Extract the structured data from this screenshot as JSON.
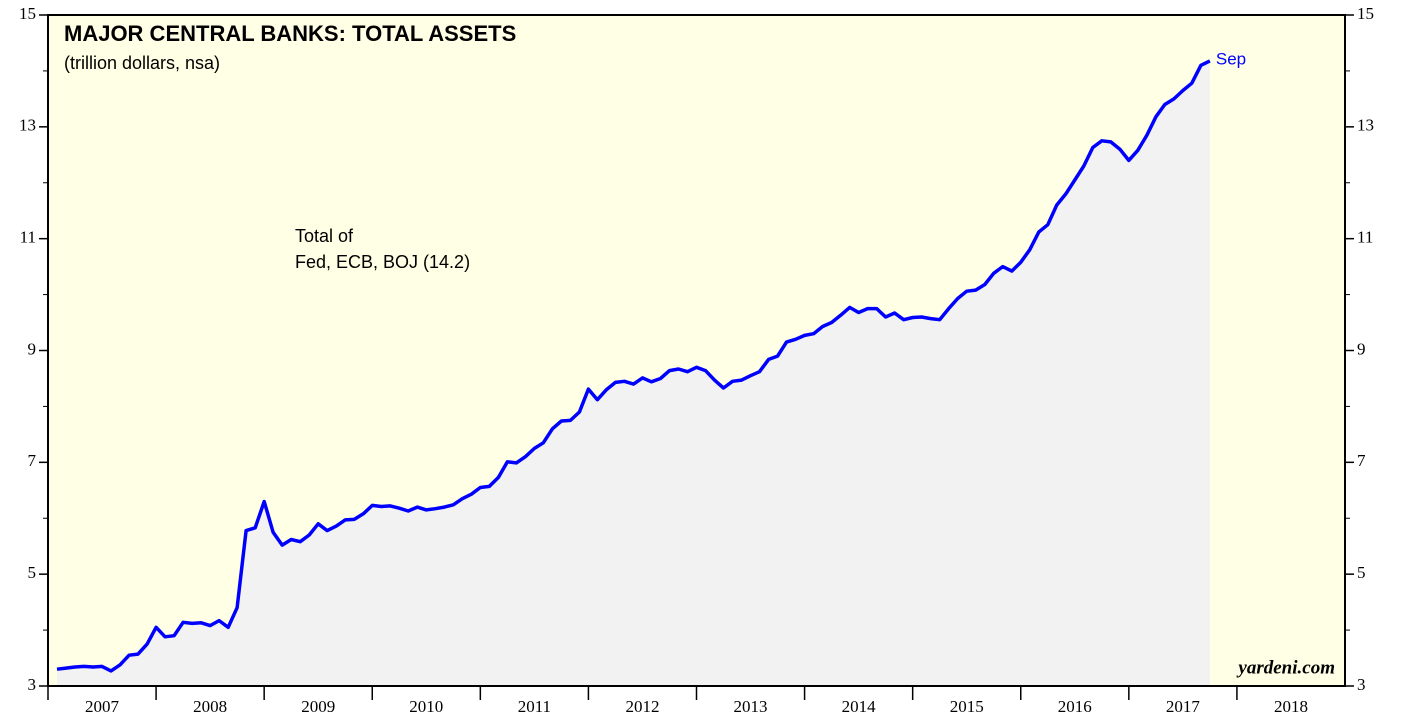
{
  "chart_data": {
    "type": "area-line",
    "title": "MAJOR CENTRAL BANKS: TOTAL ASSETS",
    "subtitle": "(trillion dollars, nsa)",
    "annotations": [
      "Total of",
      "Fed, ECB, BOJ (14.2)"
    ],
    "end_label": "Sep",
    "source": "yardeni.com",
    "x": [
      2007.083,
      2007.167,
      2007.25,
      2007.333,
      2007.417,
      2007.5,
      2007.583,
      2007.667,
      2007.75,
      2007.833,
      2007.917,
      2008,
      2008.083,
      2008.167,
      2008.25,
      2008.333,
      2008.417,
      2008.5,
      2008.583,
      2008.667,
      2008.75,
      2008.833,
      2008.917,
      2009,
      2009.083,
      2009.167,
      2009.25,
      2009.333,
      2009.417,
      2009.5,
      2009.583,
      2009.667,
      2009.75,
      2009.833,
      2009.917,
      2010,
      2010.083,
      2010.167,
      2010.25,
      2010.333,
      2010.417,
      2010.5,
      2010.583,
      2010.667,
      2010.75,
      2010.833,
      2010.917,
      2011,
      2011.083,
      2011.167,
      2011.25,
      2011.333,
      2011.417,
      2011.5,
      2011.583,
      2011.667,
      2011.75,
      2011.833,
      2011.917,
      2012,
      2012.083,
      2012.167,
      2012.25,
      2012.333,
      2012.417,
      2012.5,
      2012.583,
      2012.667,
      2012.75,
      2012.833,
      2012.917,
      2013,
      2013.083,
      2013.167,
      2013.25,
      2013.333,
      2013.417,
      2013.5,
      2013.583,
      2013.667,
      2013.75,
      2013.833,
      2013.917,
      2014,
      2014.083,
      2014.167,
      2014.25,
      2014.333,
      2014.417,
      2014.5,
      2014.583,
      2014.667,
      2014.75,
      2014.833,
      2014.917,
      2015,
      2015.083,
      2015.167,
      2015.25,
      2015.333,
      2015.417,
      2015.5,
      2015.583,
      2015.667,
      2015.75,
      2015.833,
      2015.917,
      2016,
      2016.083,
      2016.167,
      2016.25,
      2016.333,
      2016.417,
      2016.5,
      2016.583,
      2016.667,
      2016.75,
      2016.833,
      2016.917,
      2017,
      2017.083,
      2017.167,
      2017.25,
      2017.333,
      2017.417,
      2017.5,
      2017.583,
      2017.667,
      2017.75
    ],
    "series": [
      {
        "name": "Total of Fed, ECB, BOJ",
        "color": "#0000ff",
        "fill": "#f2f2f2",
        "values": [
          3.3,
          3.32,
          3.34,
          3.35,
          3.34,
          3.35,
          3.27,
          3.38,
          3.55,
          3.57,
          3.75,
          4.05,
          3.88,
          3.9,
          4.14,
          4.12,
          4.13,
          4.08,
          4.17,
          4.05,
          4.4,
          5.78,
          5.83,
          6.3,
          5.75,
          5.52,
          5.62,
          5.58,
          5.7,
          5.9,
          5.78,
          5.86,
          5.97,
          5.98,
          6.08,
          6.23,
          6.21,
          6.22,
          6.18,
          6.13,
          6.2,
          6.15,
          6.17,
          6.2,
          6.24,
          6.35,
          6.43,
          6.55,
          6.57,
          6.73,
          7.01,
          6.99,
          7.1,
          7.25,
          7.35,
          7.6,
          7.74,
          7.75,
          7.9,
          8.31,
          8.12,
          8.3,
          8.43,
          8.45,
          8.4,
          8.51,
          8.44,
          8.5,
          8.64,
          8.67,
          8.62,
          8.7,
          8.64,
          8.47,
          8.33,
          8.45,
          8.47,
          8.55,
          8.62,
          8.84,
          8.9,
          9.15,
          9.2,
          9.27,
          9.3,
          9.43,
          9.5,
          9.63,
          9.77,
          9.68,
          9.75,
          9.75,
          9.6,
          9.67,
          9.55,
          9.59,
          9.6,
          9.57,
          9.55,
          9.75,
          9.93,
          10.06,
          10.08,
          10.18,
          10.38,
          10.5,
          10.42,
          10.58,
          10.8,
          11.12,
          11.25,
          11.6,
          11.8,
          12.05,
          12.3,
          12.63,
          12.75,
          12.73,
          12.6,
          12.4,
          12.58,
          12.85,
          13.18,
          13.4,
          13.5,
          13.65,
          13.78,
          14.1,
          14.18
        ]
      }
    ],
    "xlim": [
      2007,
      2019
    ],
    "xticks": [
      2007,
      2008,
      2009,
      2010,
      2011,
      2012,
      2013,
      2014,
      2015,
      2016,
      2017,
      2018
    ],
    "ylim": [
      3,
      15
    ],
    "yticks": [
      3,
      5,
      7,
      9,
      11,
      13,
      15
    ],
    "yminor": [
      4,
      6,
      8,
      10,
      12,
      14
    ],
    "background": "#ffffe6"
  }
}
